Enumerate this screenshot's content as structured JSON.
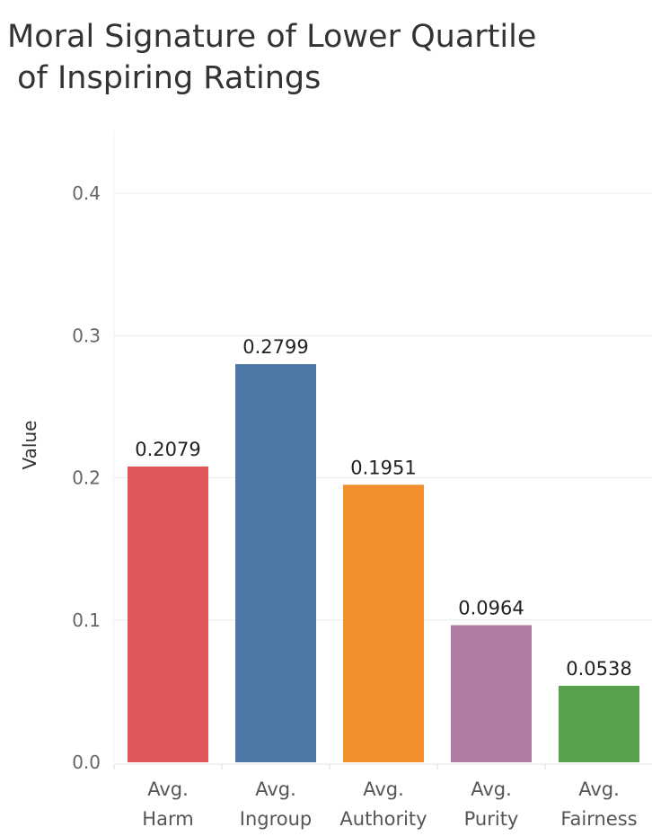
{
  "chart_data": {
    "type": "bar",
    "title_lines": [
      "Moral Signature of Lower Quartile",
      " of Inspiring Ratings"
    ],
    "ylabel": "Value",
    "xlabel": "",
    "ylim": [
      0,
      0.4
    ],
    "yticks": [
      "0.0",
      "0.1",
      "0.2",
      "0.3",
      "0.4"
    ],
    "grid": true,
    "categories": [
      [
        "Avg.",
        "Harm"
      ],
      [
        "Avg.",
        "Ingroup"
      ],
      [
        "Avg.",
        "Authority"
      ],
      [
        "Avg.",
        "Purity"
      ],
      [
        "Avg.",
        "Fairness"
      ]
    ],
    "values": [
      0.2079,
      0.2799,
      0.1951,
      0.0964,
      0.0538
    ],
    "labels": [
      "0.2079",
      "0.2799",
      "0.1951",
      "0.0964",
      "0.0538"
    ],
    "colors": [
      "#e15759",
      "#4e79a7",
      "#f28e2b",
      "#b07aa1",
      "#59a14f"
    ]
  }
}
